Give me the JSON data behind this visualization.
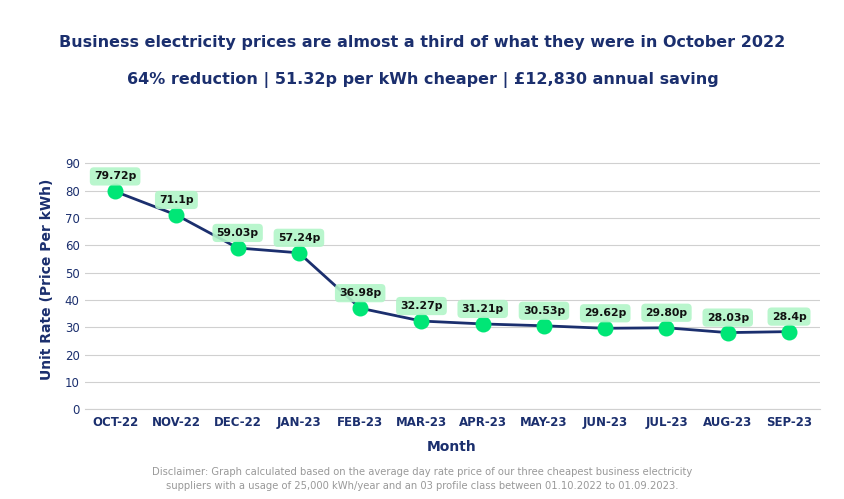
{
  "months": [
    "OCT-22",
    "NOV-22",
    "DEC-22",
    "JAN-23",
    "FEB-23",
    "MAR-23",
    "APR-23",
    "MAY-23",
    "JUN-23",
    "JUL-23",
    "AUG-23",
    "SEP-23"
  ],
  "values": [
    79.72,
    71.1,
    59.03,
    57.24,
    36.98,
    32.27,
    31.21,
    30.53,
    29.62,
    29.8,
    28.03,
    28.4
  ],
  "labels": [
    "79.72p",
    "71.1p",
    "59.03p",
    "57.24p",
    "36.98p",
    "32.27p",
    "31.21p",
    "30.53p",
    "29.62p",
    "29.80p",
    "28.03p",
    "28.4p"
  ],
  "title_line1": "Business electricity prices are almost a third of what they were in October 2022",
  "title_line2": "64% reduction | 51.32p per kWh cheaper | £12,830 annual saving",
  "xlabel": "Month",
  "ylabel": "Unit Rate (Price Per kWh)",
  "ylim": [
    0,
    95
  ],
  "yticks": [
    0,
    10,
    20,
    30,
    40,
    50,
    60,
    70,
    80,
    90
  ],
  "line_color": "#1b2f6e",
  "marker_color": "#00e676",
  "bubble_color": "#b2f5c8",
  "bubble_alpha": 0.9,
  "label_fontsize": 7.8,
  "title_fontsize": 11.5,
  "axis_label_fontsize": 10,
  "tick_fontsize": 8.5,
  "title_color": "#1b2f6e",
  "axis_color": "#1b2f6e",
  "disclaimer": "Disclaimer: Graph calculated based on the average day rate price of our three cheapest business electricity\nsuppliers with a usage of 25,000 kWh/year and an 03 profile class between 01.10.2022 to 01.09.2023.",
  "background_color": "#ffffff",
  "grid_color": "#d0d0d0"
}
